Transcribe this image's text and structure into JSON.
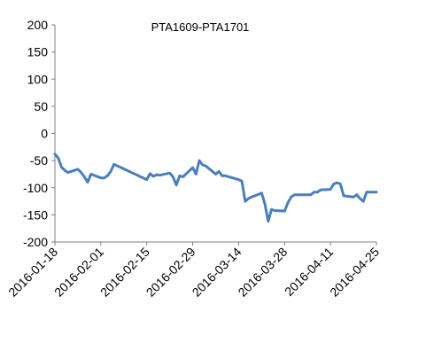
{
  "chart_data": {
    "type": "line",
    "title": "PTA1609-PTA1701",
    "xlabel": "",
    "ylabel": "",
    "ylim": [
      -200,
      200
    ],
    "yticks": [
      200,
      150,
      100,
      50,
      0,
      -50,
      -100,
      -150,
      -200
    ],
    "xtick_labels": [
      "2016-01-18",
      "2016-02-01",
      "2016-02-15",
      "2016-02-29",
      "2016-03-14",
      "2016-03-28",
      "2016-04-11",
      "2016-04-25"
    ],
    "xlim": [
      "2016-01-18",
      "2016-04-25"
    ],
    "grid": false,
    "legend": "none",
    "series": [
      {
        "color": "#4a7fbd",
        "x": [
          "2016-01-18",
          "2016-01-19",
          "2016-01-20",
          "2016-01-21",
          "2016-01-22",
          "2016-01-25",
          "2016-01-26",
          "2016-01-27",
          "2016-01-28",
          "2016-01-29",
          "2016-02-01",
          "2016-02-02",
          "2016-02-03",
          "2016-02-04",
          "2016-02-05",
          "2016-02-15",
          "2016-02-16",
          "2016-02-17",
          "2016-02-18",
          "2016-02-19",
          "2016-02-22",
          "2016-02-23",
          "2016-02-24",
          "2016-02-25",
          "2016-02-26",
          "2016-02-29",
          "2016-03-01",
          "2016-03-02",
          "2016-03-03",
          "2016-03-04",
          "2016-03-07",
          "2016-03-08",
          "2016-03-09",
          "2016-03-10",
          "2016-03-11",
          "2016-03-14",
          "2016-03-15",
          "2016-03-16",
          "2016-03-17",
          "2016-03-18",
          "2016-03-21",
          "2016-03-22",
          "2016-03-23",
          "2016-03-24",
          "2016-03-25",
          "2016-03-28",
          "2016-03-29",
          "2016-03-30",
          "2016-03-31",
          "2016-04-01",
          "2016-04-05",
          "2016-04-06",
          "2016-04-07",
          "2016-04-08",
          "2016-04-11",
          "2016-04-12",
          "2016-04-13",
          "2016-04-14",
          "2016-04-15",
          "2016-04-18",
          "2016-04-19",
          "2016-04-20",
          "2016-04-21",
          "2016-04-22",
          "2016-04-25"
        ],
        "values": [
          -38,
          -45,
          -62,
          -68,
          -72,
          -66,
          -72,
          -80,
          -90,
          -75,
          -82,
          -82,
          -78,
          -70,
          -57,
          -85,
          -74,
          -79,
          -76,
          -77,
          -73,
          -80,
          -95,
          -78,
          -80,
          -63,
          -75,
          -50,
          -58,
          -60,
          -75,
          -70,
          -78,
          -78,
          -80,
          -85,
          -88,
          -125,
          -120,
          -117,
          -110,
          -130,
          -162,
          -140,
          -142,
          -143,
          -128,
          -117,
          -113,
          -113,
          -113,
          -108,
          -108,
          -104,
          -103,
          -93,
          -91,
          -93,
          -115,
          -117,
          -113,
          -120,
          -125,
          -108,
          -108
        ]
      }
    ]
  }
}
